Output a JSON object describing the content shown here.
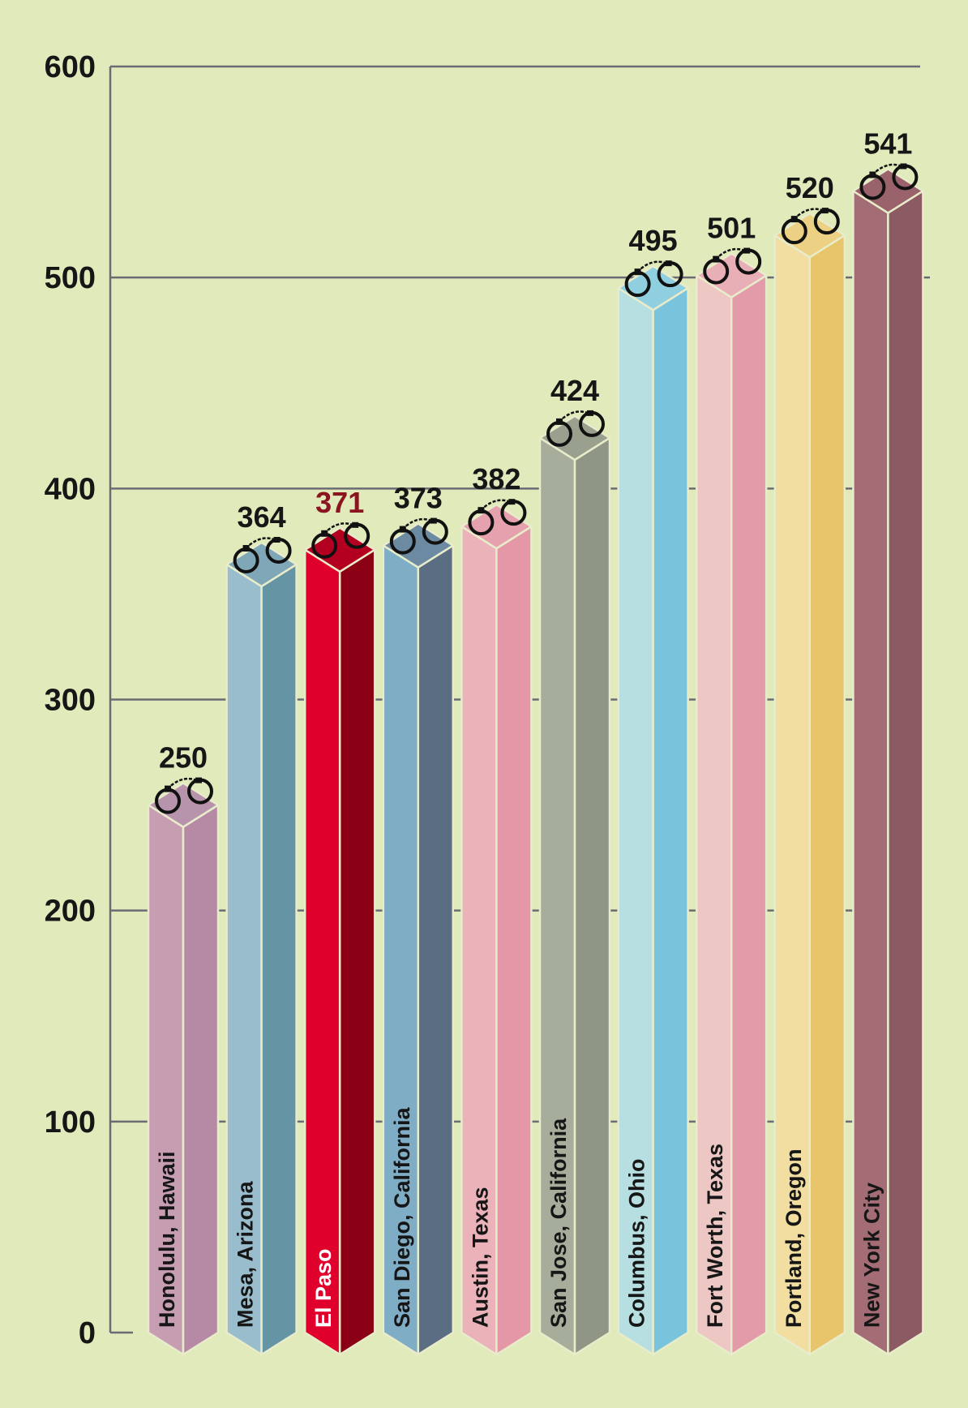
{
  "chart_data": {
    "type": "bar",
    "categories": [
      "Honolulu, Hawaii",
      "Mesa, Arizona",
      "El Paso",
      "San Diego, California",
      "Austin, Texas",
      "San Jose, California",
      "Columbus, Ohio",
      "Fort Worth, Texas",
      "Portland, Oregon",
      "New York City"
    ],
    "values": [
      250,
      364,
      371,
      373,
      382,
      424,
      495,
      501,
      520,
      541
    ],
    "value_labels": [
      "250",
      "364",
      "371",
      "373",
      "382",
      "424",
      "495",
      "501",
      "520",
      "541"
    ],
    "highlight": "El Paso",
    "ylim": [
      0,
      600
    ],
    "yticks": [
      0,
      100,
      200,
      300,
      400,
      500,
      600
    ],
    "ytick_labels": [
      "0",
      "100",
      "200",
      "300",
      "400",
      "500",
      "600"
    ],
    "grid": true,
    "bar_marker_icon": "handcuffs-icon",
    "colors": {
      "background": "#e1eabb",
      "gridline": "#6b6b74",
      "bars": [
        {
          "left": "#c79db2",
          "right": "#b68aa4",
          "top": "#b794ab"
        },
        {
          "left": "#99bdcc",
          "right": "#6594a5",
          "top": "#7fa7b8"
        },
        {
          "left": "#e0002c",
          "right": "#8b0014",
          "top": "#b30020"
        },
        {
          "left": "#80adc6",
          "right": "#5b6d83",
          "top": "#6c8ba3"
        },
        {
          "left": "#ebb2b9",
          "right": "#e497a6",
          "top": "#e5a2ae"
        },
        {
          "left": "#a6ad9b",
          "right": "#909685",
          "top": "#9aa08e"
        },
        {
          "left": "#b7dee0",
          "right": "#79c4dc",
          "top": "#90cfe0"
        },
        {
          "left": "#ecc7c4",
          "right": "#e49ba9",
          "top": "#e8afb6"
        },
        {
          "left": "#f1dea0",
          "right": "#e8c46b",
          "top": "#ecd083"
        },
        {
          "left": "#a46d75",
          "right": "#8c5a62",
          "top": "#9a636c"
        }
      ]
    }
  }
}
